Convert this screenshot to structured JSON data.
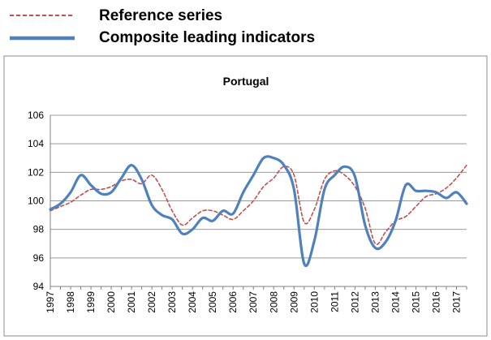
{
  "chart_data": {
    "type": "line",
    "title": "Portugal",
    "xlabel": "",
    "ylabel": "",
    "ylim": [
      94,
      106
    ],
    "y_ticks": [
      94,
      96,
      98,
      100,
      102,
      104,
      106
    ],
    "x_range": [
      1997,
      2017
    ],
    "x_tick_labels": [
      "1997",
      "1998",
      "1999",
      "2000",
      "2001",
      "2002",
      "2003",
      "2004",
      "2005",
      "2006",
      "2007",
      "2008",
      "2009",
      "2010",
      "2011",
      "2012",
      "2013",
      "2014",
      "2015",
      "2016",
      "2017"
    ],
    "grid": "horizontal",
    "legend_position": "top-left, outside plot",
    "series": [
      {
        "name": "Reference series",
        "style": "dashed",
        "color": "#c0504d",
        "points": [
          [
            1997.0,
            99.3
          ],
          [
            1997.5,
            99.6
          ],
          [
            1998.0,
            99.9
          ],
          [
            1998.5,
            100.4
          ],
          [
            1999.0,
            100.8
          ],
          [
            1999.5,
            100.8
          ],
          [
            2000.0,
            101.0
          ],
          [
            2000.5,
            101.4
          ],
          [
            2001.0,
            101.5
          ],
          [
            2001.5,
            101.2
          ],
          [
            2002.0,
            101.8
          ],
          [
            2002.5,
            100.8
          ],
          [
            2003.0,
            99.3
          ],
          [
            2003.5,
            98.3
          ],
          [
            2004.0,
            98.8
          ],
          [
            2004.5,
            99.3
          ],
          [
            2005.0,
            99.3
          ],
          [
            2005.5,
            99.0
          ],
          [
            2006.0,
            98.7
          ],
          [
            2006.5,
            99.3
          ],
          [
            2007.0,
            100.0
          ],
          [
            2007.5,
            101.0
          ],
          [
            2008.0,
            101.6
          ],
          [
            2008.5,
            102.4
          ],
          [
            2009.0,
            101.8
          ],
          [
            2009.5,
            98.5
          ],
          [
            2010.0,
            99.4
          ],
          [
            2010.5,
            101.5
          ],
          [
            2011.0,
            102.1
          ],
          [
            2011.5,
            101.8
          ],
          [
            2012.0,
            101.0
          ],
          [
            2012.5,
            99.5
          ],
          [
            2013.0,
            97.0
          ],
          [
            2013.5,
            97.8
          ],
          [
            2014.0,
            98.6
          ],
          [
            2014.5,
            98.9
          ],
          [
            2015.0,
            99.6
          ],
          [
            2015.5,
            100.3
          ],
          [
            2016.0,
            100.5
          ],
          [
            2016.5,
            100.9
          ],
          [
            2017.0,
            101.6
          ],
          [
            2017.5,
            102.5
          ]
        ]
      },
      {
        "name": "Composite leading indicators",
        "style": "solid",
        "color": "#4f81bd",
        "points": [
          [
            1997.0,
            99.4
          ],
          [
            1997.5,
            99.8
          ],
          [
            1998.0,
            100.6
          ],
          [
            1998.5,
            101.8
          ],
          [
            1999.0,
            101.1
          ],
          [
            1999.5,
            100.5
          ],
          [
            2000.0,
            100.6
          ],
          [
            2000.5,
            101.6
          ],
          [
            2001.0,
            102.5
          ],
          [
            2001.5,
            101.5
          ],
          [
            2002.0,
            99.7
          ],
          [
            2002.5,
            99.0
          ],
          [
            2003.0,
            98.7
          ],
          [
            2003.5,
            97.7
          ],
          [
            2004.0,
            98.0
          ],
          [
            2004.5,
            98.8
          ],
          [
            2005.0,
            98.6
          ],
          [
            2005.5,
            99.3
          ],
          [
            2006.0,
            99.1
          ],
          [
            2006.5,
            100.6
          ],
          [
            2007.0,
            101.8
          ],
          [
            2007.5,
            103.0
          ],
          [
            2008.0,
            103.0
          ],
          [
            2008.5,
            102.5
          ],
          [
            2009.0,
            100.8
          ],
          [
            2009.5,
            95.6
          ],
          [
            2010.0,
            97.2
          ],
          [
            2010.5,
            100.8
          ],
          [
            2011.0,
            101.8
          ],
          [
            2011.5,
            102.4
          ],
          [
            2012.0,
            101.7
          ],
          [
            2012.5,
            98.3
          ],
          [
            2013.0,
            96.7
          ],
          [
            2013.5,
            97.1
          ],
          [
            2014.0,
            98.6
          ],
          [
            2014.5,
            101.1
          ],
          [
            2015.0,
            100.7
          ],
          [
            2015.5,
            100.7
          ],
          [
            2016.0,
            100.6
          ],
          [
            2016.5,
            100.2
          ],
          [
            2017.0,
            100.6
          ],
          [
            2017.5,
            99.8
          ]
        ]
      }
    ]
  }
}
